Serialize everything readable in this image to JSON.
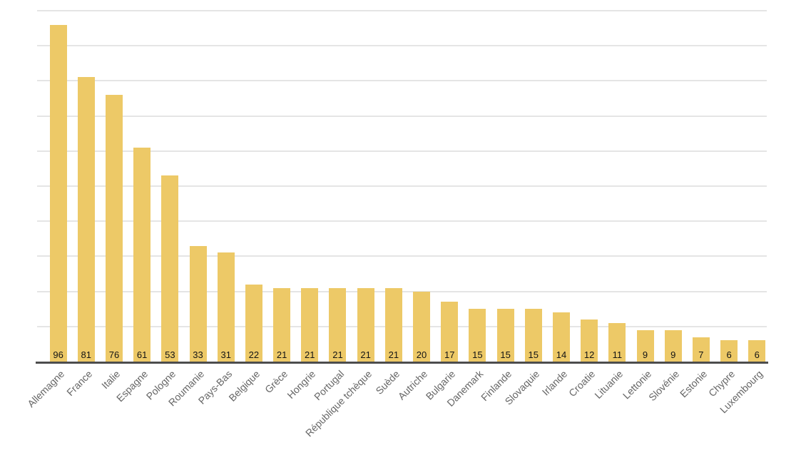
{
  "chart_data": {
    "type": "bar",
    "title": "",
    "xlabel": "",
    "ylabel": "",
    "categories": [
      "Allemagne",
      "France",
      "Italie",
      "Espagne",
      "Pologne",
      "Roumanie",
      "Pays-Bas",
      "Belgique",
      "Grèce",
      "Hongrie",
      "Portugal",
      "République tchèque",
      "Suède",
      "Autriche",
      "Bulgarie",
      "Danemark",
      "Finlande",
      "Slovaquie",
      "Irlande",
      "Croatie",
      "Lituanie",
      "Lettonie",
      "Slovénie",
      "Estonie",
      "Chypre",
      "Luxembourg"
    ],
    "values": [
      96,
      81,
      76,
      61,
      53,
      33,
      31,
      22,
      21,
      21,
      21,
      21,
      21,
      20,
      17,
      15,
      15,
      15,
      14,
      12,
      11,
      9,
      9,
      7,
      6,
      6
    ],
    "ylim": [
      0,
      100
    ],
    "grid": true,
    "gridline_step": 10,
    "legend": "none",
    "data_label_position": "bar-base",
    "category_label_rotation_deg": -45,
    "colors": {
      "bar": "#EDC967",
      "gridline": "#E5E5E5",
      "axis": "#4D4D4D",
      "value_label": "#141414",
      "category_label": "#666666",
      "background": "#FFFFFF"
    }
  }
}
